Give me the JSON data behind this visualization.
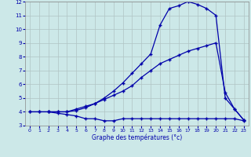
{
  "xlabel": "Graphe des températures (°c)",
  "xlim": [
    -0.5,
    23.5
  ],
  "ylim": [
    3,
    12
  ],
  "xticks": [
    0,
    1,
    2,
    3,
    4,
    5,
    6,
    7,
    8,
    9,
    10,
    11,
    12,
    13,
    14,
    15,
    16,
    17,
    18,
    19,
    20,
    21,
    22,
    23
  ],
  "yticks": [
    3,
    4,
    5,
    6,
    7,
    8,
    9,
    10,
    11,
    12
  ],
  "background_color": "#cce8e8",
  "grid_color": "#b0c4c4",
  "line_color": "#0000aa",
  "line1_x": [
    0,
    1,
    2,
    3,
    4,
    5,
    6,
    7,
    8,
    9,
    10,
    11,
    12,
    13,
    14,
    15,
    16,
    17,
    18,
    19,
    20,
    21,
    22,
    23
  ],
  "line1_y": [
    4.0,
    4.0,
    4.0,
    3.9,
    3.8,
    3.7,
    3.5,
    3.5,
    3.35,
    3.35,
    3.5,
    3.5,
    3.5,
    3.5,
    3.5,
    3.5,
    3.5,
    3.5,
    3.5,
    3.5,
    3.5,
    3.5,
    3.5,
    3.35
  ],
  "line2_x": [
    0,
    1,
    2,
    3,
    4,
    5,
    6,
    7,
    8,
    9,
    10,
    11,
    12,
    13,
    14,
    15,
    16,
    17,
    18,
    19,
    20,
    21,
    22,
    23
  ],
  "line2_y": [
    4.0,
    4.0,
    4.0,
    4.0,
    4.0,
    4.2,
    4.4,
    4.6,
    4.9,
    5.2,
    5.5,
    5.9,
    6.5,
    7.0,
    7.5,
    7.8,
    8.1,
    8.4,
    8.6,
    8.8,
    9.0,
    5.4,
    4.2,
    3.4
  ],
  "line3_x": [
    2,
    3,
    4,
    5,
    6,
    7,
    8,
    9,
    10,
    11,
    12,
    13,
    14,
    15,
    16,
    17,
    18,
    19,
    20,
    21,
    22,
    23
  ],
  "line3_y": [
    4.0,
    4.0,
    4.0,
    4.1,
    4.3,
    4.6,
    5.0,
    5.5,
    6.1,
    6.8,
    7.5,
    8.2,
    10.3,
    11.5,
    11.7,
    12.0,
    11.8,
    11.5,
    11.0,
    5.0,
    4.2,
    3.4
  ]
}
